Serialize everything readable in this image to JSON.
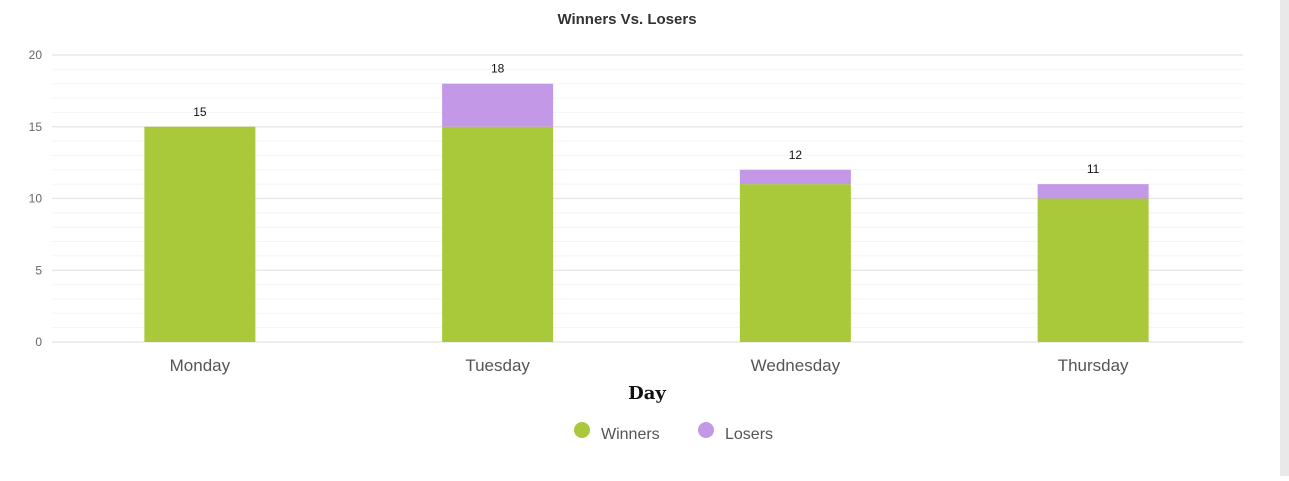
{
  "chart_data": {
    "type": "bar",
    "stacked": true,
    "title": "Winners Vs. Losers",
    "xlabel": "Day",
    "ylabel": "",
    "ylim": [
      0,
      20
    ],
    "yticks": [
      0,
      5,
      10,
      15,
      20
    ],
    "categories": [
      "Monday",
      "Tuesday",
      "Wednesday",
      "Thursday"
    ],
    "series": [
      {
        "name": "Winners",
        "values": [
          15,
          15,
          11,
          10
        ],
        "color": "#a9c93a"
      },
      {
        "name": "Losers",
        "values": [
          0,
          3,
          1,
          1
        ],
        "color": "#c398e6"
      }
    ],
    "totals": [
      15,
      18,
      12,
      11
    ],
    "grid": true,
    "legend_position": "bottom-center"
  }
}
